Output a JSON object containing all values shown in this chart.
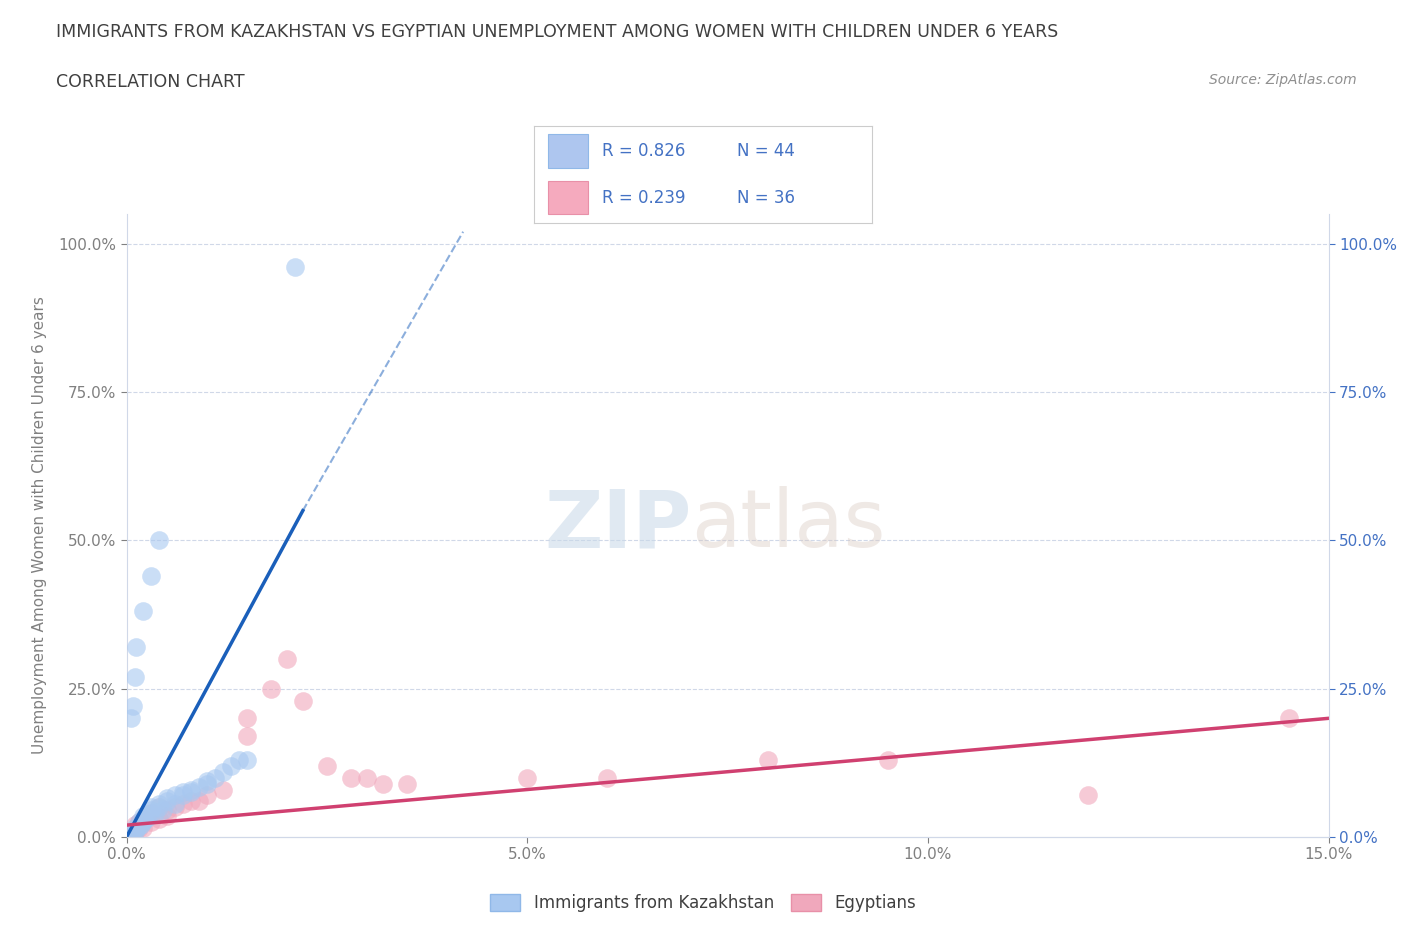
{
  "title": "IMMIGRANTS FROM KAZAKHSTAN VS EGYPTIAN UNEMPLOYMENT AMONG WOMEN WITH CHILDREN UNDER 6 YEARS",
  "subtitle": "CORRELATION CHART",
  "source": "Source: ZipAtlas.com",
  "ylabel": "Unemployment Among Women with Children Under 6 years",
  "watermark_text": "ZIP",
  "watermark_text2": "atlas",
  "xlim": [
    0.0,
    0.15
  ],
  "ylim": [
    0.0,
    1.05
  ],
  "xtick_vals": [
    0.0,
    0.05,
    0.1,
    0.15
  ],
  "xticklabels": [
    "0.0%",
    "5.0%",
    "10.0%",
    "15.0%"
  ],
  "ytick_vals": [
    0.0,
    0.25,
    0.5,
    0.75,
    1.0
  ],
  "yticklabels_left": [
    "0.0%",
    "25.0%",
    "50.0%",
    "75.0%",
    "100.0%"
  ],
  "yticklabels_right": [
    "0.0%",
    "25.0%",
    "50.0%",
    "75.0%",
    "100.0%"
  ],
  "kaz_R": 0.826,
  "kaz_N": 44,
  "egy_R": 0.239,
  "egy_N": 36,
  "kaz_color": "#a8c8f0",
  "egy_color": "#f0a8bc",
  "kaz_line_color": "#1a5fba",
  "egy_line_color": "#d04070",
  "kaz_line_x0": 0.0,
  "kaz_line_y0": 0.0,
  "kaz_line_x1": 0.022,
  "kaz_line_y1": 0.55,
  "egy_line_x0": 0.0,
  "egy_line_y0": 0.02,
  "egy_line_x1": 0.15,
  "egy_line_y1": 0.2,
  "dash_line_x0": 0.022,
  "dash_line_y0": 0.55,
  "dash_line_x1": 0.042,
  "dash_line_y1": 1.02,
  "kaz_scatter_x": [
    0.0005,
    0.0008,
    0.001,
    0.001,
    0.0012,
    0.0015,
    0.0015,
    0.0018,
    0.002,
    0.002,
    0.002,
    0.0022,
    0.0025,
    0.003,
    0.003,
    0.003,
    0.0035,
    0.004,
    0.004,
    0.0045,
    0.005,
    0.005,
    0.006,
    0.006,
    0.007,
    0.007,
    0.008,
    0.008,
    0.009,
    0.01,
    0.01,
    0.011,
    0.012,
    0.013,
    0.014,
    0.015,
    0.0005,
    0.0008,
    0.001,
    0.0012,
    0.002,
    0.003,
    0.004,
    0.021
  ],
  "kaz_scatter_y": [
    0.005,
    0.008,
    0.01,
    0.015,
    0.012,
    0.018,
    0.025,
    0.02,
    0.025,
    0.03,
    0.035,
    0.028,
    0.032,
    0.04,
    0.045,
    0.05,
    0.04,
    0.05,
    0.055,
    0.045,
    0.06,
    0.065,
    0.055,
    0.07,
    0.07,
    0.075,
    0.08,
    0.075,
    0.085,
    0.09,
    0.095,
    0.1,
    0.11,
    0.12,
    0.13,
    0.13,
    0.2,
    0.22,
    0.27,
    0.32,
    0.38,
    0.44,
    0.5,
    0.96
  ],
  "egy_scatter_x": [
    0.0005,
    0.0008,
    0.001,
    0.001,
    0.0015,
    0.0015,
    0.002,
    0.002,
    0.003,
    0.003,
    0.004,
    0.004,
    0.005,
    0.005,
    0.006,
    0.007,
    0.008,
    0.009,
    0.01,
    0.012,
    0.015,
    0.015,
    0.018,
    0.02,
    0.022,
    0.025,
    0.028,
    0.03,
    0.032,
    0.035,
    0.05,
    0.06,
    0.08,
    0.095,
    0.12,
    0.145
  ],
  "egy_scatter_y": [
    0.005,
    0.008,
    0.01,
    0.02,
    0.015,
    0.025,
    0.015,
    0.03,
    0.025,
    0.04,
    0.03,
    0.05,
    0.035,
    0.045,
    0.05,
    0.055,
    0.06,
    0.06,
    0.07,
    0.08,
    0.17,
    0.2,
    0.25,
    0.3,
    0.23,
    0.12,
    0.1,
    0.1,
    0.09,
    0.09,
    0.1,
    0.1,
    0.13,
    0.13,
    0.07,
    0.2
  ],
  "background_color": "#ffffff",
  "grid_color": "#d0d8e8",
  "title_color": "#404040",
  "axis_tick_color": "#808080",
  "right_axis_color": "#4472c4",
  "legend_box_color": "#aec6ef",
  "legend_box_color2": "#f5aabe",
  "legend_border_color": "#cccccc",
  "source_color": "#909090"
}
